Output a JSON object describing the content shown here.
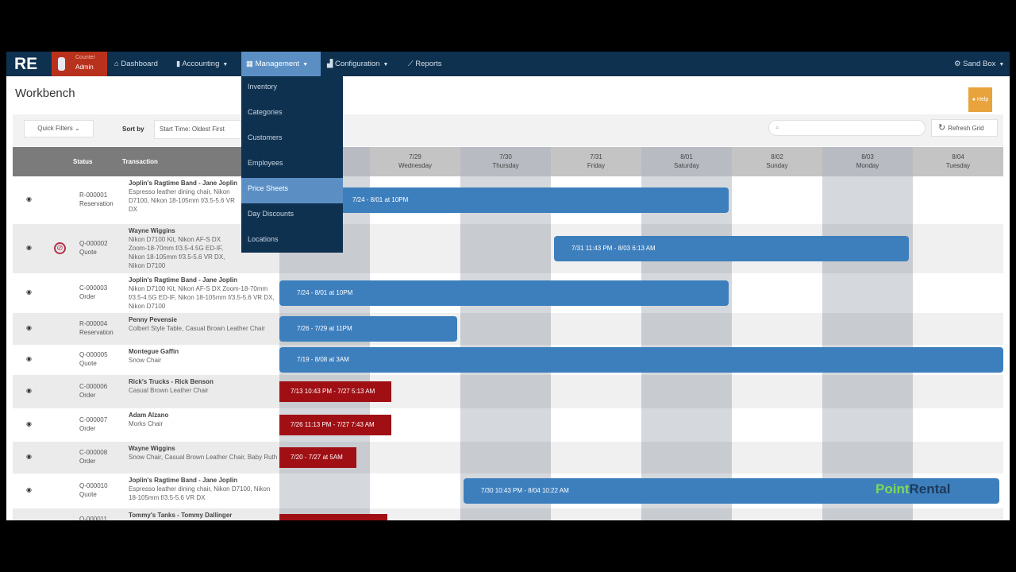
{
  "nav": {
    "logo": "RE",
    "user_role": "Counter",
    "user_name": "Admin",
    "items": [
      {
        "label": "Dashboard",
        "icon": "dashboard-icon"
      },
      {
        "label": "Accounting",
        "icon": "book-icon",
        "dropdown": true
      },
      {
        "label": "Management",
        "icon": "table-icon",
        "dropdown": true,
        "active": true
      },
      {
        "label": "Configuration",
        "icon": "truck-icon",
        "dropdown": true
      },
      {
        "label": "Reports",
        "icon": "chart-icon"
      }
    ],
    "env": "Sand Box"
  },
  "management_menu": [
    {
      "label": "Inventory"
    },
    {
      "label": "Categories"
    },
    {
      "label": "Customers"
    },
    {
      "label": "Employees"
    },
    {
      "label": "Price Sheets",
      "highlighted": true
    },
    {
      "label": "Day Discounts"
    },
    {
      "label": "Locations"
    }
  ],
  "page": {
    "title": "Workbench",
    "help": "Help"
  },
  "toolbar": {
    "quick_filters": "Quick Filters",
    "sort_by_label": "Sort by",
    "sort_by_value": "Start Time: Oldest First",
    "search_placeholder": "",
    "refresh": "Refresh Grid"
  },
  "grid": {
    "headers": {
      "status": "Status",
      "transaction": "Transaction"
    },
    "days": [
      {
        "date": "7/28",
        "day": "Tuesday"
      },
      {
        "date": "7/29",
        "day": "Wednesday"
      },
      {
        "date": "7/30",
        "day": "Thursday"
      },
      {
        "date": "7/31",
        "day": "Friday"
      },
      {
        "date": "8/01",
        "day": "Saturday"
      },
      {
        "date": "8/02",
        "day": "Sunday"
      },
      {
        "date": "8/03",
        "day": "Monday"
      },
      {
        "date": "8/04",
        "day": "Tuesday"
      }
    ],
    "rows": [
      {
        "id": "R-000001",
        "type": "Reservation",
        "customer": "Joplin's Ragtime Band - Jane Joplin",
        "items": "Espresso leather dining chair, Nikon D7100, Nikon 18-105mm f/3.5-5.6 VR DX",
        "bar": "7/24 - 8/01 at 10PM",
        "bar_color": "blue"
      },
      {
        "id": "Q-000002",
        "type": "Quote",
        "customer": "Wayne Wiggins",
        "items": "Nikon D7100 Kit, Nikon AF-S DX Zoom-18-70mm f/3.5-4.5G ED-IF, Nikon 18-105mm f/3.5-5.6 VR DX, Nikon D7100",
        "bar": "7/31 11:43 PM - 8/03 6:13 AM",
        "bar_color": "blue",
        "blocked": true
      },
      {
        "id": "C-000003",
        "type": "Order",
        "customer": "Joplin's Ragtime Band - Jane Joplin",
        "items": "Nikon D7100 Kit, Nikon AF-S DX Zoom-18-70mm f/3.5-4.5G ED-IF, Nikon 18-105mm f/3.5-5.6 VR DX, Nikon D7100",
        "bar": "7/24 - 8/01 at 10PM",
        "bar_color": "blue"
      },
      {
        "id": "R-000004",
        "type": "Reservation",
        "customer": "Penny Pevensie",
        "items": "Colbert Style Table, Casual Brown Leather Chair",
        "bar": "7/26 - 7/29 at 11PM",
        "bar_color": "blue"
      },
      {
        "id": "Q-000005",
        "type": "Quote",
        "customer": "Montegue Gaffin",
        "items": "Snow Chair",
        "bar": "7/19 - 8/08 at 3AM",
        "bar_color": "blue"
      },
      {
        "id": "C-000006",
        "type": "Order",
        "customer": "Rick's Trucks - Rick Benson",
        "items": "Casual Brown Leather Chair",
        "bar": "7/13 10:43 PM - 7/27 5:13 AM",
        "bar_color": "red"
      },
      {
        "id": "C-000007",
        "type": "Order",
        "customer": "Adam Alzano",
        "items": "Morks Chair",
        "bar": "7/26 11:13 PM - 7/27 7:43 AM",
        "bar_color": "red"
      },
      {
        "id": "C-000008",
        "type": "Order",
        "customer": "Wayne Wiggins",
        "items": "Snow Chair, Casual Brown Leather Chair, Baby Ruth",
        "bar": "7/20 - 7/27 at 5AM",
        "bar_color": "red"
      },
      {
        "id": "Q-000010",
        "type": "Quote",
        "customer": "Joplin's Ragtime Band - Jane Joplin",
        "items": "Espresso leather dining chair, Nikon D7100, Nikon 18-105mm f/3.5-5.6 VR DX",
        "bar": "7/30 10:43 PM - 8/04 10:22 AM",
        "bar_color": "blue"
      },
      {
        "id": "Q-000011",
        "type": "",
        "customer": "Tommy's Tanks - Tommy Dallinger",
        "items": "",
        "bar": "",
        "bar_color": "red"
      }
    ]
  },
  "watermark": {
    "text_a": "Point",
    "text_b": "Rental"
  },
  "colors": {
    "navbar": "#0e3150",
    "active": "#5b8fc4",
    "bar_blue": "#3d7fbd",
    "bar_red": "#a00f14",
    "help": "#e8a33d"
  }
}
